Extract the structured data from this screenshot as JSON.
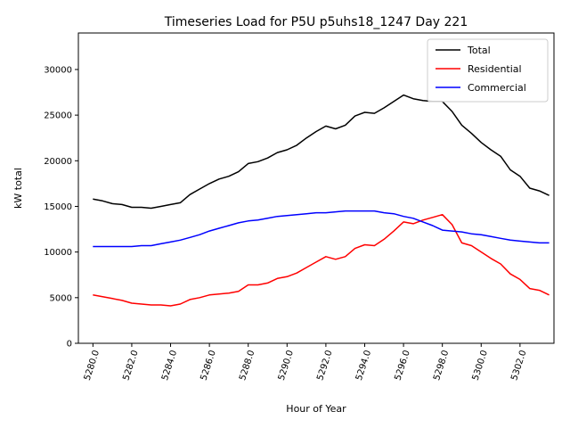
{
  "chart_data": {
    "type": "line",
    "title": "Timeseries Load for P5U p5uhs18_1247  Day 221",
    "xlabel": "Hour of Year",
    "ylabel": "kW total",
    "xlim": [
      5279.25,
      5303.75
    ],
    "ylim": [
      0,
      34000
    ],
    "xticks": [
      5280,
      5282,
      5284,
      5286,
      5288,
      5290,
      5292,
      5294,
      5296,
      5298,
      5300,
      5302
    ],
    "xtick_labels": [
      "5280.0",
      "5282.0",
      "5284.0",
      "5286.0",
      "5288.0",
      "5290.0",
      "5292.0",
      "5294.0",
      "5296.0",
      "5298.0",
      "5300.0",
      "5302.0"
    ],
    "yticks": [
      0,
      5000,
      10000,
      15000,
      20000,
      25000,
      30000
    ],
    "ytick_labels": [
      "0",
      "5000",
      "10000",
      "15000",
      "20000",
      "25000",
      "30000"
    ],
    "legend_position": "top-right",
    "grid": false,
    "x": [
      5280,
      5280.5,
      5281,
      5281.5,
      5282,
      5282.5,
      5283,
      5283.5,
      5284,
      5284.5,
      5285,
      5285.5,
      5286,
      5286.5,
      5287,
      5287.5,
      5288,
      5288.5,
      5289,
      5289.5,
      5290,
      5290.5,
      5291,
      5291.5,
      5292,
      5292.5,
      5293,
      5293.5,
      5294,
      5294.5,
      5295,
      5295.5,
      5296,
      5296.5,
      5297,
      5297.5,
      5298,
      5298.5,
      5299,
      5299.5,
      5300,
      5300.5,
      5301,
      5301.5,
      5302,
      5302.5,
      5303,
      5303.5
    ],
    "series": [
      {
        "name": "Total",
        "color": "#000000",
        "values": [
          15800,
          15600,
          15300,
          15200,
          14900,
          14900,
          14800,
          15000,
          15200,
          15400,
          16300,
          16900,
          17500,
          18000,
          18300,
          18800,
          19700,
          19900,
          20300,
          20900,
          21200,
          21700,
          22500,
          23200,
          23800,
          23500,
          23900,
          24900,
          25300,
          25200,
          25800,
          26500,
          27200,
          26800,
          26600,
          26500,
          26500,
          25400,
          23900,
          23000,
          22000,
          21200,
          20500,
          19000,
          18300,
          17000,
          16700,
          16200
        ]
      },
      {
        "name": "Residential",
        "color": "#ff0000",
        "values": [
          5300,
          5100,
          4900,
          4700,
          4400,
          4300,
          4200,
          4200,
          4100,
          4300,
          4800,
          5000,
          5300,
          5400,
          5500,
          5700,
          6400,
          6400,
          6600,
          7100,
          7300,
          7700,
          8300,
          8900,
          9500,
          9200,
          9500,
          10400,
          10800,
          10700,
          11400,
          12300,
          13300,
          13100,
          13500,
          13800,
          14100,
          13000,
          11000,
          10700,
          10000,
          9300,
          8700,
          7600,
          7000,
          6000,
          5800,
          5300
        ]
      },
      {
        "name": "Commercial",
        "color": "#0000ff",
        "values": [
          10600,
          10600,
          10600,
          10600,
          10600,
          10700,
          10700,
          10900,
          11100,
          11300,
          11600,
          11900,
          12300,
          12600,
          12900,
          13200,
          13400,
          13500,
          13700,
          13900,
          14000,
          14100,
          14200,
          14300,
          14300,
          14400,
          14500,
          14500,
          14500,
          14500,
          14300,
          14200,
          13900,
          13700,
          13300,
          12900,
          12400,
          12300,
          12200,
          12000,
          11900,
          11700,
          11500,
          11300,
          11200,
          11100,
          11000,
          11000
        ]
      }
    ]
  }
}
